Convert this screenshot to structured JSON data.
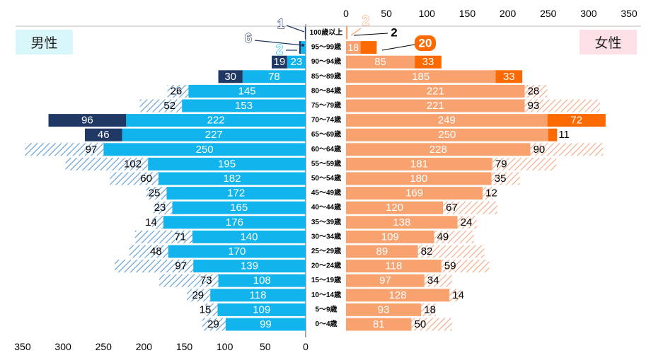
{
  "labels": {
    "male": "男性",
    "female": "女性"
  },
  "chart_data": {
    "type": "bar",
    "subtype": "population-pyramid",
    "categories": [
      "100歳以上",
      "95～99歳",
      "90～94歳",
      "85～89歳",
      "80～84歳",
      "75～79歳",
      "70～74歳",
      "65～69歳",
      "60～64歳",
      "55～59歳",
      "50～54歳",
      "45～49歳",
      "40～44歳",
      "35～39歳",
      "30～34歳",
      "25～29歳",
      "20～24歳",
      "15～19歳",
      "10～14歳",
      "5～9歳",
      "0～4歳"
    ],
    "male": {
      "base": [
        0,
        6,
        23,
        78,
        145,
        153,
        222,
        227,
        250,
        195,
        182,
        172,
        165,
        176,
        140,
        170,
        139,
        108,
        118,
        109,
        99
      ],
      "increase": [
        1,
        2,
        19,
        30,
        0,
        0,
        96,
        46,
        0,
        0,
        0,
        0,
        0,
        0,
        0,
        0,
        0,
        0,
        0,
        0,
        0
      ],
      "decrease": [
        0,
        0,
        0,
        0,
        26,
        52,
        0,
        0,
        97,
        102,
        60,
        25,
        23,
        14,
        71,
        48,
        97,
        73,
        29,
        15,
        29
      ]
    },
    "female": {
      "base": [
        2,
        18,
        85,
        185,
        221,
        221,
        249,
        250,
        228,
        181,
        180,
        169,
        120,
        138,
        109,
        89,
        118,
        97,
        128,
        93,
        81
      ],
      "increase": [
        0,
        20,
        33,
        33,
        0,
        0,
        72,
        11,
        0,
        0,
        0,
        0,
        0,
        0,
        0,
        0,
        0,
        0,
        0,
        0,
        0
      ],
      "decrease": [
        0,
        0,
        0,
        0,
        28,
        93,
        0,
        0,
        90,
        79,
        35,
        12,
        67,
        24,
        49,
        82,
        59,
        34,
        14,
        18,
        50
      ]
    },
    "callouts": {
      "male": [
        "1",
        "6",
        "2"
      ],
      "female": [
        "2",
        "2",
        "20"
      ]
    },
    "x_ticks_top": [
      0,
      50,
      100,
      150,
      200,
      250,
      300,
      350
    ],
    "x_ticks_bottom": [
      350,
      300,
      250,
      200,
      150,
      100,
      50,
      0
    ],
    "xlim": [
      0,
      350
    ],
    "colors": {
      "male_base": "#11b4ec",
      "male_increase": "#1f3864",
      "male_decrease": "#2e75b6",
      "female_base": "#f8a270",
      "female_increase": "#ff6a00",
      "female_decrease": "#f4794c",
      "label_light": "#ffffff",
      "label_dark": "#000000"
    }
  }
}
